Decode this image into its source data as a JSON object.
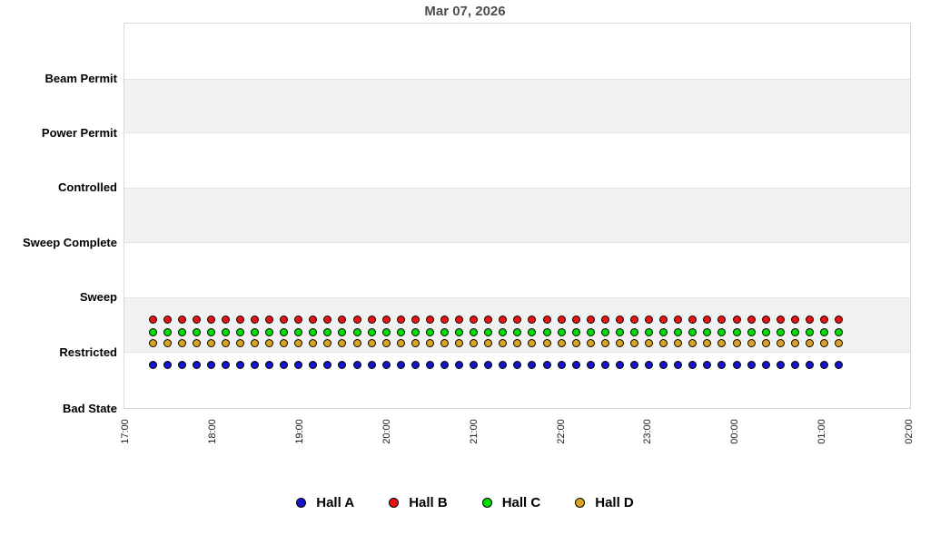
{
  "chart_data": {
    "type": "scatter",
    "title": "Mar 07, 2026",
    "y_axis": {
      "categories_bottom_to_top": [
        "Bad State",
        "Restricted",
        "Sweep",
        "Sweep Complete",
        "Controlled",
        "Power Permit",
        "Beam Permit"
      ]
    },
    "x_axis": {
      "ticks": [
        "17:00",
        "18:00",
        "19:00",
        "20:00",
        "21:00",
        "22:00",
        "23:00",
        "00:00",
        "01:00",
        "02:00"
      ],
      "tick_label_rotation_deg": -90
    },
    "x_times": [
      "17:20",
      "17:30",
      "17:40",
      "17:50",
      "18:00",
      "18:10",
      "18:20",
      "18:30",
      "18:40",
      "18:50",
      "19:00",
      "19:10",
      "19:20",
      "19:30",
      "19:40",
      "19:50",
      "20:00",
      "20:10",
      "20:20",
      "20:30",
      "20:40",
      "20:50",
      "21:00",
      "21:10",
      "21:20",
      "21:30",
      "21:40",
      "21:50",
      "22:00",
      "22:10",
      "22:20",
      "22:30",
      "22:40",
      "22:50",
      "23:00",
      "23:10",
      "23:20",
      "23:30",
      "23:40",
      "23:50",
      "00:00",
      "00:10",
      "00:20",
      "00:30",
      "00:40",
      "00:50",
      "01:00",
      "01:10"
    ],
    "series": [
      {
        "name": "Hall A",
        "color": "#1414cc",
        "marker": "circle",
        "points_count": 48,
        "values_all": "Restricted"
      },
      {
        "name": "Hall B",
        "color": "#ee1111",
        "marker": "circle",
        "points_count": 48,
        "values_all": "Restricted"
      },
      {
        "name": "Hall C",
        "color": "#00dd00",
        "marker": "circle",
        "points_count": 48,
        "values_all": "Restricted"
      },
      {
        "name": "Hall D",
        "color": "#d9a520",
        "marker": "circle",
        "points_count": 48,
        "values_all": "Restricted"
      }
    ],
    "legend": {
      "position": "bottom-center",
      "entries": [
        "Hall A",
        "Hall B",
        "Hall C",
        "Hall D"
      ]
    },
    "layout_hints": {
      "band_color": "#f2f2f2",
      "grid_banding": true,
      "title_color": "#4d4d4d",
      "series_row_jitter_note": "all series plotted around Restricted with per-series vertical offsets to avoid overlap"
    }
  }
}
